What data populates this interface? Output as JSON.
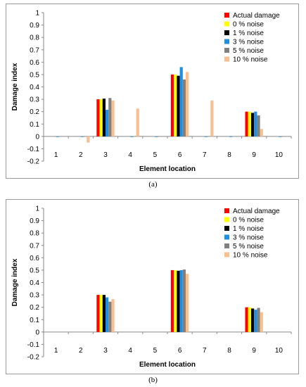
{
  "charts": [
    {
      "caption": "(a)",
      "chart_data": {
        "type": "bar",
        "categories": [
          "1",
          "2",
          "3",
          "4",
          "5",
          "6",
          "7",
          "8",
          "9",
          "10"
        ],
        "ylabel": "Damage index",
        "xlabel": "Element location",
        "ylim": [
          -0.2,
          1
        ],
        "yticks": [
          "-0.2",
          "-0.1",
          "0",
          "0.1",
          "0.2",
          "0.3",
          "0.4",
          "0.5",
          "0.6",
          "0.7",
          "0.8",
          "0.9",
          "1"
        ],
        "grid": false,
        "legend": "top-right",
        "series": [
          {
            "name": "Actual damage",
            "color": "#ff0000",
            "values": [
              0,
              0,
              0.3,
              0,
              0,
              0.5,
              0,
              0,
              0.2,
              0
            ]
          },
          {
            "name": "0 % noise",
            "color": "#ffff00",
            "values": [
              0,
              0,
              0.3,
              0,
              0,
              0.5,
              0,
              0,
              0.2,
              0
            ]
          },
          {
            "name": "1 % noise",
            "color": "#000000",
            "values": [
              0,
              0,
              0.305,
              0,
              0,
              0.49,
              0,
              0,
              0.19,
              0
            ]
          },
          {
            "name": "3 % noise",
            "color": "#1f8fe0",
            "values": [
              -0.005,
              -0.005,
              0.215,
              -0.005,
              -0.005,
              0.56,
              -0.005,
              -0.005,
              0.2,
              -0.005
            ]
          },
          {
            "name": "5 % noise",
            "color": "#808080",
            "values": [
              0,
              0,
              0.31,
              0,
              0,
              0.46,
              0,
              0,
              0.17,
              0
            ]
          },
          {
            "name": "10 % noise",
            "color": "#f8c090",
            "values": [
              0,
              -0.05,
              0.29,
              0.225,
              0,
              0.52,
              0.29,
              0,
              0.06,
              0
            ]
          }
        ]
      }
    },
    {
      "caption": "(b)",
      "chart_data": {
        "type": "bar",
        "categories": [
          "1",
          "2",
          "3",
          "4",
          "5",
          "6",
          "7",
          "8",
          "9",
          "10"
        ],
        "ylabel": "Damage index",
        "xlabel": "Element location",
        "ylim": [
          -0.2,
          1
        ],
        "yticks": [
          "-0.2",
          "-0.1",
          "0",
          "0.1",
          "0.2",
          "0.3",
          "0.4",
          "0.5",
          "0.6",
          "0.7",
          "0.8",
          "0.9",
          "1"
        ],
        "grid": false,
        "legend": "top-right",
        "series": [
          {
            "name": "Actual damage",
            "color": "#ff0000",
            "values": [
              0,
              0,
              0.3,
              0,
              0,
              0.5,
              0,
              0,
              0.2,
              0
            ]
          },
          {
            "name": "0 % noise",
            "color": "#ffff00",
            "values": [
              0,
              0,
              0.3,
              0,
              0,
              0.5,
              0,
              0,
              0.2,
              0
            ]
          },
          {
            "name": "1 % noise",
            "color": "#000000",
            "values": [
              0,
              0,
              0.3,
              0,
              0,
              0.495,
              0,
              0,
              0.19,
              0
            ]
          },
          {
            "name": "3 % noise",
            "color": "#1f8fe0",
            "values": [
              0,
              0,
              0.28,
              0,
              0,
              0.5,
              0,
              0,
              0.18,
              0
            ]
          },
          {
            "name": "5 % noise",
            "color": "#808080",
            "values": [
              0,
              0,
              0.245,
              0,
              0,
              0.505,
              0,
              0,
              0.195,
              0
            ]
          },
          {
            "name": "10 % noise",
            "color": "#f8c090",
            "values": [
              0,
              0,
              0.265,
              0,
              0,
              0.47,
              0,
              0,
              0.16,
              0
            ]
          }
        ]
      }
    }
  ]
}
